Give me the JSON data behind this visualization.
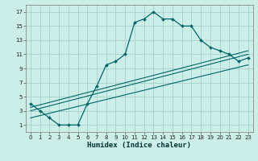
{
  "title": "",
  "xlabel": "Humidex (Indice chaleur)",
  "bg_color": "#cceee8",
  "grid_color": "#aad4ce",
  "line_color": "#006666",
  "xlim": [
    -0.5,
    23.5
  ],
  "ylim": [
    0,
    18
  ],
  "xticks": [
    0,
    1,
    2,
    3,
    4,
    5,
    6,
    7,
    8,
    9,
    10,
    11,
    12,
    13,
    14,
    15,
    16,
    17,
    18,
    19,
    20,
    21,
    22,
    23
  ],
  "yticks": [
    1,
    3,
    5,
    7,
    9,
    11,
    13,
    15,
    17
  ],
  "curve1_x": [
    0,
    1,
    2,
    3,
    4,
    5,
    6,
    7,
    8,
    9,
    10,
    11,
    12,
    13,
    14,
    15,
    16,
    17,
    18,
    19,
    20,
    21,
    22,
    23
  ],
  "curve1_y": [
    4,
    3,
    2,
    1,
    1,
    1,
    4,
    6.5,
    9.5,
    10,
    11,
    15.5,
    16,
    17,
    16,
    16,
    15,
    15,
    13,
    12,
    11.5,
    11,
    10,
    10.5
  ],
  "curve2_x": [
    0,
    23
  ],
  "curve2_y": [
    3.5,
    11.5
  ],
  "curve3_x": [
    0,
    23
  ],
  "curve3_y": [
    3.0,
    11.0
  ],
  "curve4_x": [
    0,
    23
  ],
  "curve4_y": [
    2.0,
    9.5
  ],
  "xlabel_fontsize": 6.5,
  "tick_fontsize": 5.0
}
